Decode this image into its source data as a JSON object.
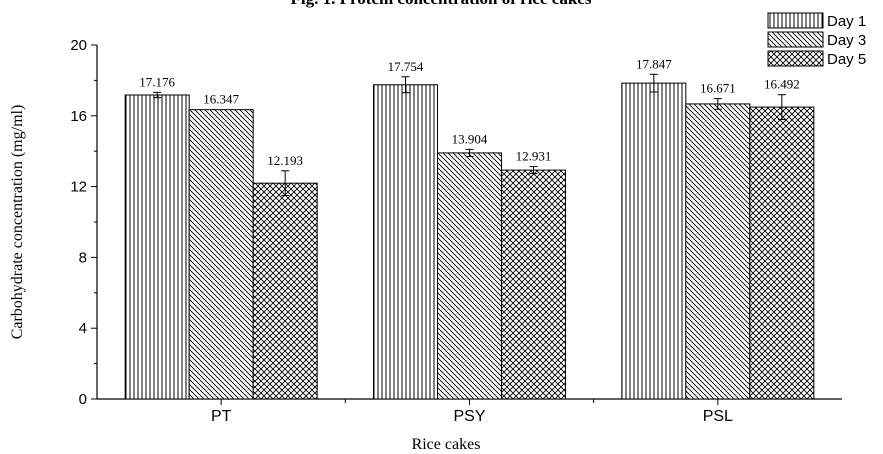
{
  "chart_data": {
    "type": "bar",
    "title": "Fig. 1. Protein concentration of rice cakes",
    "xlabel": "Rice cakes",
    "ylabel": "Carbohydrate concentration (mg/ml)",
    "ylim": [
      0,
      20
    ],
    "yticks": [
      0,
      4,
      8,
      12,
      16,
      20
    ],
    "yticks_text": [
      "0",
      "4",
      "8",
      "12",
      "16",
      "20"
    ],
    "categories": [
      "PT",
      "PSY",
      "PSL"
    ],
    "series": [
      {
        "name": "Day 1",
        "values": [
          17.176,
          17.754,
          17.847
        ],
        "labels": [
          "17.176",
          "17.754",
          "17.847"
        ],
        "errors": [
          0.15,
          0.45,
          0.5
        ]
      },
      {
        "name": "Day 3",
        "values": [
          16.347,
          13.904,
          16.671
        ],
        "labels": [
          "16.347",
          "13.904",
          "16.671"
        ],
        "errors": [
          0.0,
          0.2,
          0.3
        ]
      },
      {
        "name": "Day 5",
        "values": [
          12.193,
          12.931,
          16.492
        ],
        "labels": [
          "12.193",
          "12.931",
          "16.492"
        ],
        "errors": [
          0.7,
          0.2,
          0.7
        ]
      }
    ],
    "legend": "top-right",
    "grid": false
  }
}
